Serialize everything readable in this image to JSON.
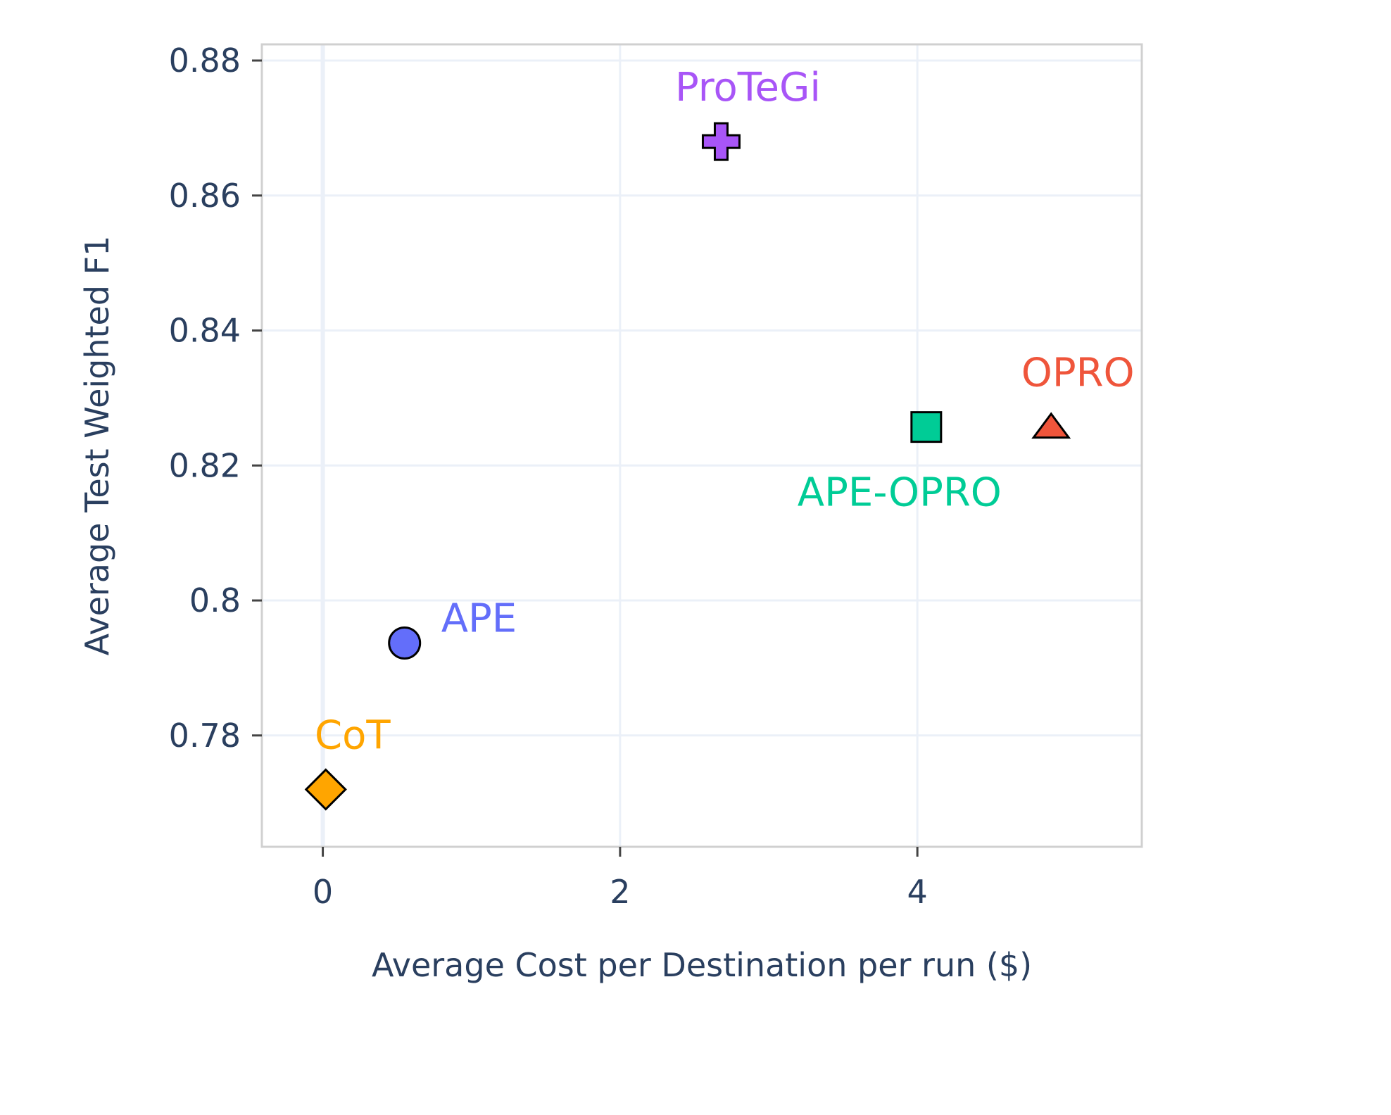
{
  "chart_data": {
    "type": "scatter",
    "xlabel": "Average Cost per Destination per run ($)",
    "ylabel": "Average Test Weighted F1",
    "xlim": [
      -0.41,
      5.51
    ],
    "ylim": [
      0.7635,
      0.8824
    ],
    "x_ticks": [
      0,
      2,
      4
    ],
    "x_tick_labels": [
      "0",
      "2",
      "4"
    ],
    "y_ticks": [
      0.78,
      0.8,
      0.82,
      0.84,
      0.86,
      0.88
    ],
    "y_tick_labels": [
      "0.78",
      "0.8",
      "0.82",
      "0.84",
      "0.86",
      "0.88"
    ],
    "grid": true,
    "series": [
      {
        "name": "CoT",
        "x": 0.02,
        "y": 0.772,
        "marker": "diamond",
        "color": "#FFA500",
        "label_pos": "above"
      },
      {
        "name": "APE",
        "x": 0.55,
        "y": 0.7937,
        "marker": "circle",
        "color": "#636EFA",
        "label_pos": "upper-right"
      },
      {
        "name": "ProTeGi",
        "x": 2.68,
        "y": 0.868,
        "marker": "cross",
        "color": "#A855F7",
        "label_pos": "above"
      },
      {
        "name": "APE-OPRO",
        "x": 4.06,
        "y": 0.8257,
        "marker": "square",
        "color": "#00CC96",
        "label_pos": "below"
      },
      {
        "name": "OPRO",
        "x": 4.9,
        "y": 0.8257,
        "marker": "triangle-up",
        "color": "#EF553B",
        "label_pos": "above"
      }
    ]
  }
}
